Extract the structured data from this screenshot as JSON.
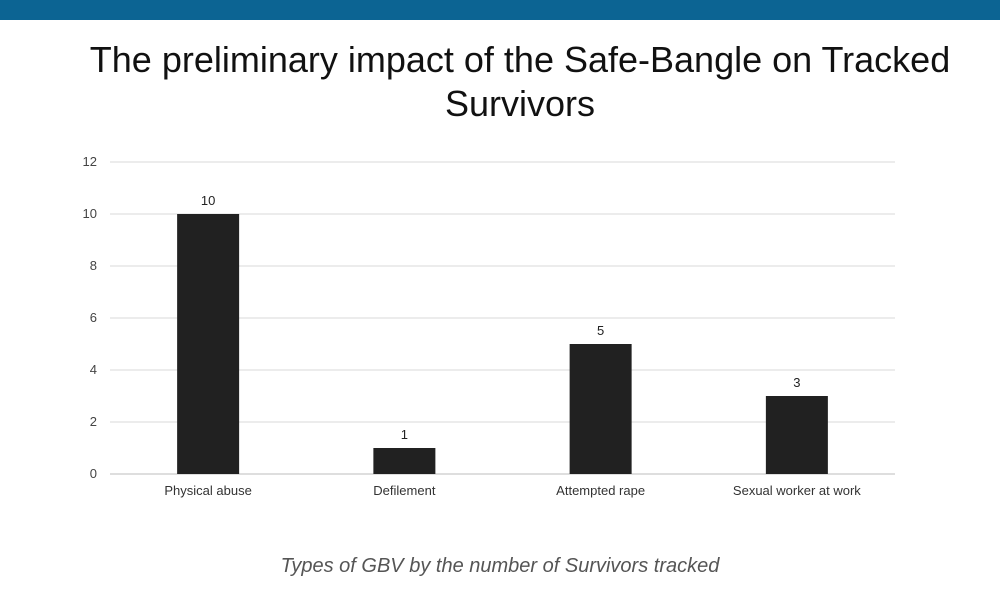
{
  "slide": {
    "title": "The preliminary impact of the Safe-Bangle on Tracked Survivors",
    "caption": "Types of GBV by the number of Survivors tracked",
    "header_color": "#0c6493"
  },
  "chart_data": {
    "type": "bar",
    "title": "",
    "xlabel": "",
    "ylabel": "",
    "categories": [
      "Physical abuse",
      "Defilement",
      "Attempted rape",
      "Sexual worker at work"
    ],
    "values": [
      10,
      1,
      5,
      3
    ],
    "ylim": [
      0,
      12
    ],
    "yticks": [
      0,
      2,
      4,
      6,
      8,
      10,
      12
    ],
    "grid": true,
    "legend": "none",
    "bar_color": "#212121",
    "data_labels": true
  }
}
